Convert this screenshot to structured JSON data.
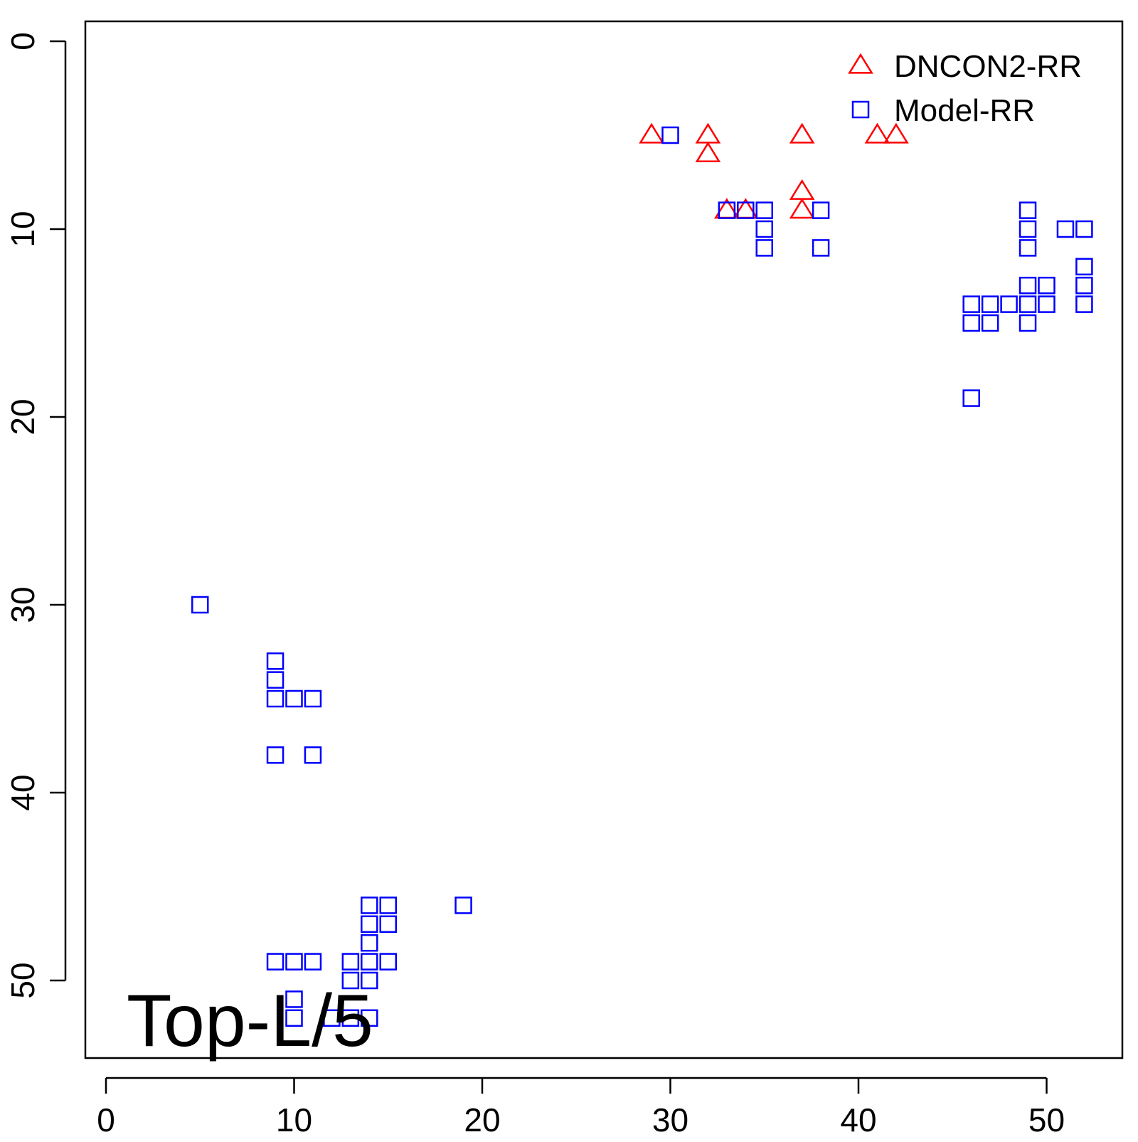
{
  "chart_data": {
    "type": "scatter",
    "title": "",
    "xlabel": "",
    "ylabel": "",
    "xlim": [
      -1,
      54
    ],
    "ylim": [
      0,
      54
    ],
    "y_reversed": true,
    "x_ticks": [
      0,
      10,
      20,
      30,
      40,
      50
    ],
    "y_ticks": [
      0,
      10,
      20,
      30,
      40,
      50
    ],
    "x_tick_labels": [
      "0",
      "10",
      "20",
      "30",
      "40",
      "50"
    ],
    "y_tick_labels": [
      "0",
      "10",
      "20",
      "30",
      "40",
      "50"
    ],
    "grid": false,
    "legend_position": "top-right",
    "annotation": "Top-L/5",
    "series": [
      {
        "name": "DNCON2-RR",
        "marker": "triangle",
        "color": "#ff0000",
        "points": [
          [
            29,
            5
          ],
          [
            32,
            5
          ],
          [
            32,
            6
          ],
          [
            33,
            9
          ],
          [
            34,
            9
          ],
          [
            37,
            5
          ],
          [
            37,
            8
          ],
          [
            37,
            9
          ],
          [
            41,
            5
          ],
          [
            42,
            5
          ]
        ]
      },
      {
        "name": "Model-RR",
        "marker": "square",
        "color": "#0000ff",
        "points": [
          [
            30,
            5
          ],
          [
            33,
            9
          ],
          [
            34,
            9
          ],
          [
            35,
            9
          ],
          [
            35,
            10
          ],
          [
            35,
            11
          ],
          [
            38,
            9
          ],
          [
            38,
            11
          ],
          [
            49,
            9
          ],
          [
            49,
            10
          ],
          [
            49,
            11
          ],
          [
            51,
            10
          ],
          [
            52,
            10
          ],
          [
            52,
            12
          ],
          [
            52,
            13
          ],
          [
            52,
            14
          ],
          [
            49,
            13
          ],
          [
            50,
            13
          ],
          [
            46,
            14
          ],
          [
            47,
            14
          ],
          [
            48,
            14
          ],
          [
            49,
            14
          ],
          [
            50,
            14
          ],
          [
            46,
            15
          ],
          [
            47,
            15
          ],
          [
            49,
            15
          ],
          [
            46,
            19
          ],
          [
            5,
            30
          ],
          [
            9,
            33
          ],
          [
            9,
            34
          ],
          [
            9,
            35
          ],
          [
            10,
            35
          ],
          [
            11,
            35
          ],
          [
            9,
            38
          ],
          [
            11,
            38
          ],
          [
            14,
            46
          ],
          [
            15,
            46
          ],
          [
            19,
            46
          ],
          [
            14,
            47
          ],
          [
            15,
            47
          ],
          [
            14,
            48
          ],
          [
            9,
            49
          ],
          [
            10,
            49
          ],
          [
            11,
            49
          ],
          [
            13,
            49
          ],
          [
            14,
            49
          ],
          [
            15,
            49
          ],
          [
            13,
            50
          ],
          [
            14,
            50
          ],
          [
            10,
            51
          ],
          [
            10,
            52
          ],
          [
            12,
            52
          ],
          [
            13,
            52
          ],
          [
            14,
            52
          ]
        ]
      }
    ]
  }
}
